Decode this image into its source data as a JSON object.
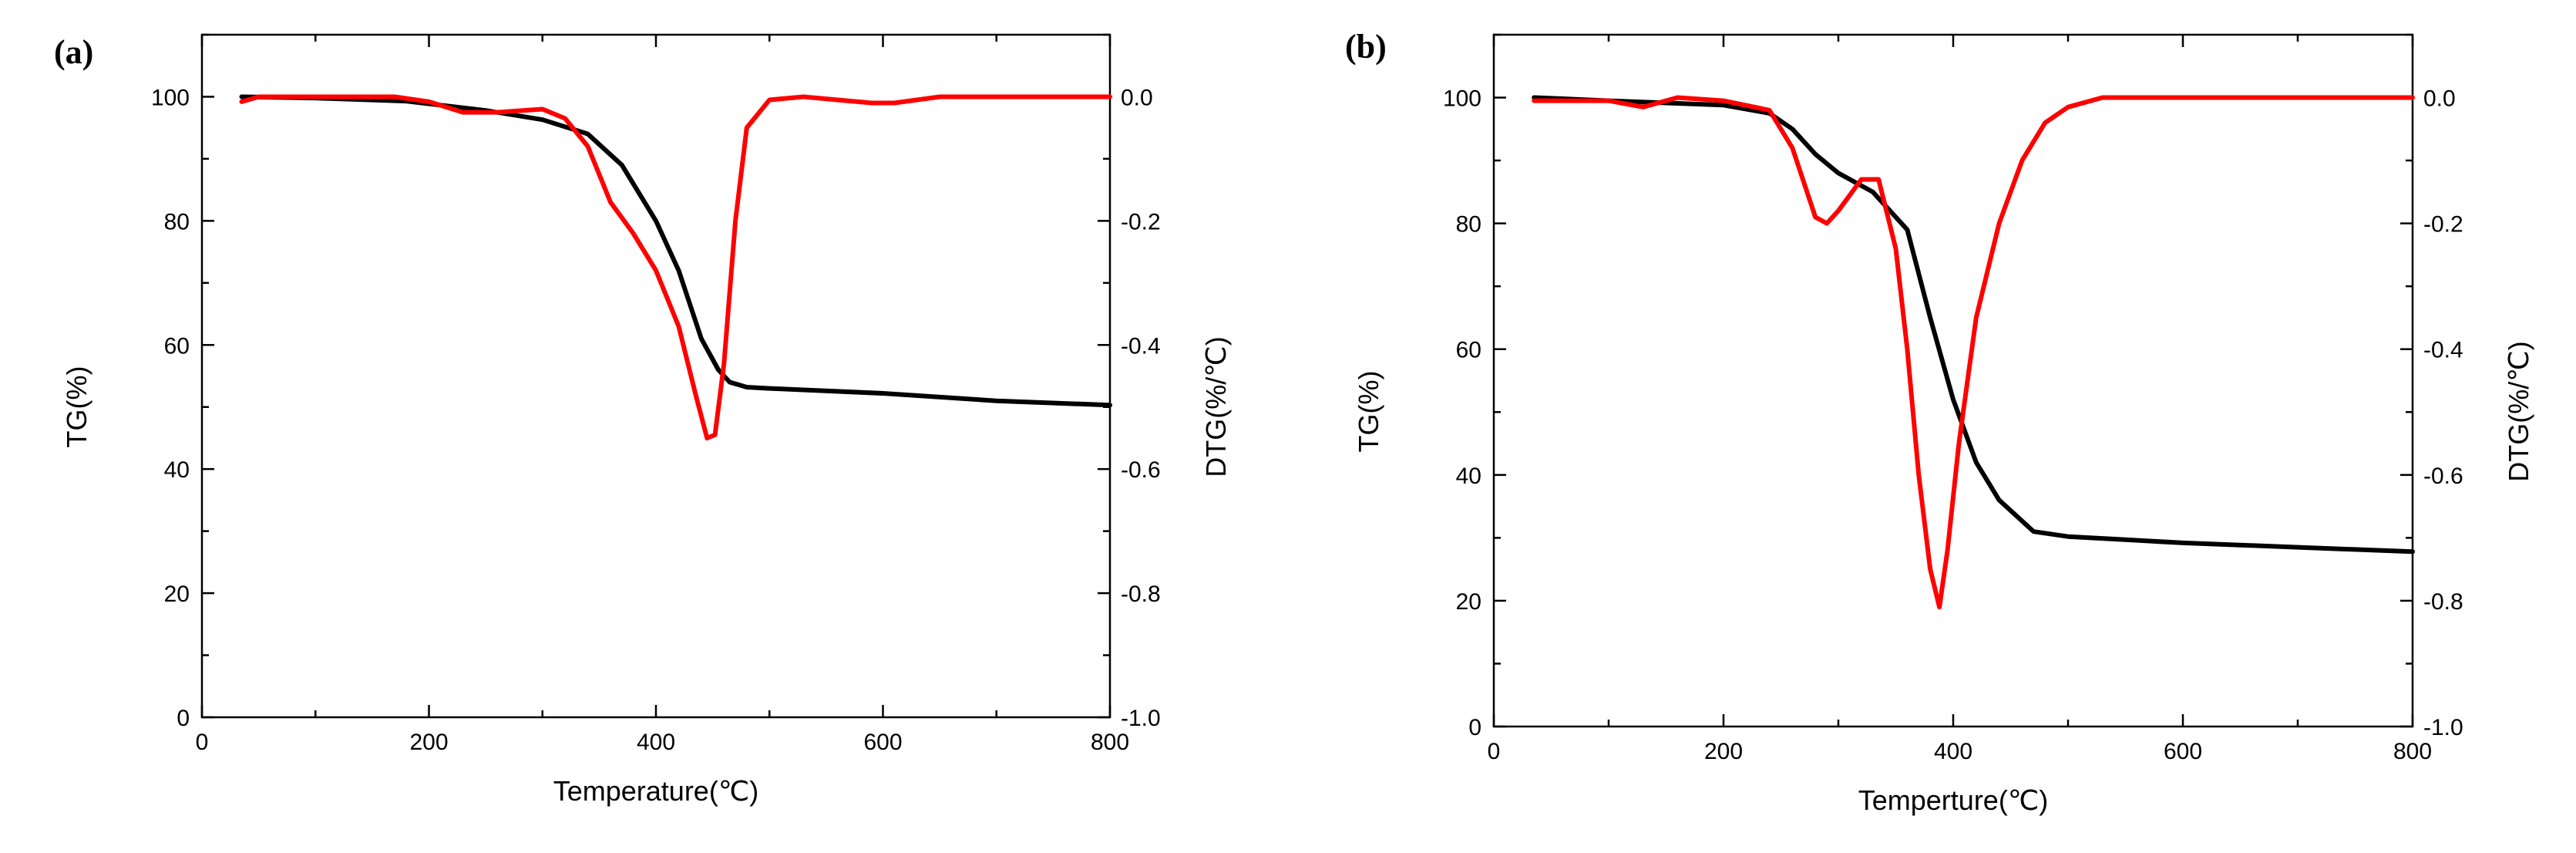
{
  "chart_data": [
    {
      "panel_label": "(a)",
      "type": "line",
      "xlabel": "Temperature(℃)",
      "ylabel_left": "TG(%)",
      "ylabel_right": "DTG(%/℃)",
      "xlim": [
        0,
        800
      ],
      "ylim_left": [
        0,
        110
      ],
      "ylim_right": [
        -1.0,
        0.1
      ],
      "xticks": [
        0,
        200,
        400,
        600,
        800
      ],
      "yticks_left": [
        0,
        20,
        40,
        60,
        80,
        100
      ],
      "yticks_right": [
        -1.0,
        -0.8,
        -0.6,
        -0.4,
        -0.2,
        0.0
      ],
      "ytick_labels_right": [
        "-1.0",
        "-0.8",
        "-0.6",
        "-0.4",
        "-0.2",
        "0.0"
      ],
      "series": [
        {
          "name": "TG",
          "axis": "left",
          "color": "#000000",
          "x": [
            35,
            100,
            180,
            250,
            300,
            340,
            370,
            400,
            420,
            440,
            455,
            465,
            480,
            500,
            600,
            700,
            800
          ],
          "y": [
            100,
            99.8,
            99.3,
            97.8,
            96.3,
            94,
            89,
            80,
            72,
            61,
            56,
            54,
            53.2,
            53,
            52.2,
            51,
            50.3
          ]
        },
        {
          "name": "DTG",
          "axis": "right",
          "color": "#ff0000",
          "x": [
            35,
            50,
            100,
            170,
            200,
            230,
            260,
            300,
            320,
            340,
            360,
            380,
            400,
            420,
            435,
            445,
            452,
            460,
            470,
            480,
            500,
            530,
            560,
            590,
            610,
            650,
            700,
            750,
            800
          ],
          "y": [
            -0.008,
            0.0,
            0.0,
            0.0,
            -0.008,
            -0.025,
            -0.025,
            -0.02,
            -0.035,
            -0.08,
            -0.17,
            -0.22,
            -0.28,
            -0.37,
            -0.48,
            -0.55,
            -0.545,
            -0.43,
            -0.2,
            -0.05,
            -0.005,
            0.0,
            -0.005,
            -0.01,
            -0.01,
            0.0,
            0.0,
            0.0,
            0.0
          ]
        }
      ]
    },
    {
      "panel_label": "(b)",
      "type": "line",
      "xlabel": "Temperture(℃)",
      "ylabel_left": "TG(%)",
      "ylabel_right": "DTG(%/℃)",
      "xlim": [
        0,
        800
      ],
      "ylim_left": [
        0,
        110
      ],
      "ylim_right": [
        -1.0,
        0.1
      ],
      "xticks": [
        0,
        200,
        400,
        600,
        800
      ],
      "yticks_left": [
        0,
        20,
        40,
        60,
        80,
        100
      ],
      "yticks_right": [
        -1.0,
        -0.8,
        -0.6,
        -0.4,
        -0.2,
        0.0
      ],
      "ytick_labels_right": [
        "-1.0",
        "-0.8",
        "-0.6",
        "-0.4",
        "-0.2",
        "0.0"
      ],
      "series": [
        {
          "name": "TG",
          "axis": "left",
          "color": "#000000",
          "x": [
            35,
            100,
            200,
            240,
            260,
            280,
            300,
            330,
            360,
            380,
            400,
            420,
            440,
            470,
            500,
            550,
            600,
            700,
            800
          ],
          "y": [
            100,
            99.5,
            98.8,
            97.5,
            95,
            91,
            88,
            85,
            79,
            65,
            52,
            42,
            36,
            31,
            30.2,
            29.7,
            29.2,
            28.5,
            27.8
          ]
        },
        {
          "name": "DTG",
          "axis": "right",
          "color": "#ff0000",
          "x": [
            35,
            100,
            130,
            160,
            200,
            240,
            260,
            280,
            290,
            300,
            320,
            335,
            350,
            360,
            370,
            380,
            388,
            395,
            405,
            420,
            440,
            460,
            480,
            500,
            530,
            560,
            600,
            650,
            700,
            800
          ],
          "y": [
            -0.005,
            -0.005,
            -0.015,
            0.0,
            -0.005,
            -0.02,
            -0.08,
            -0.19,
            -0.2,
            -0.18,
            -0.13,
            -0.13,
            -0.24,
            -0.4,
            -0.6,
            -0.75,
            -0.81,
            -0.72,
            -0.55,
            -0.35,
            -0.2,
            -0.1,
            -0.04,
            -0.015,
            0.0,
            0.0,
            0.0,
            0.0,
            0.0,
            0.0
          ]
        }
      ]
    }
  ]
}
